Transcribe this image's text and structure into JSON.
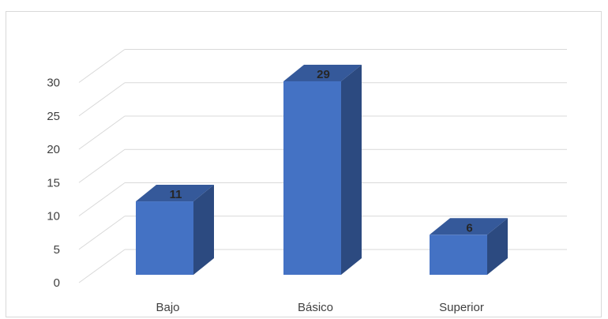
{
  "chart_data": {
    "type": "bar",
    "style": "3d-column",
    "categories": [
      "Bajo",
      "Básico",
      "Superior"
    ],
    "values": [
      11,
      29,
      6
    ],
    "data_labels": [
      "11",
      "29",
      "6"
    ],
    "title": "",
    "xlabel": "",
    "ylabel": "",
    "ylim": [
      0,
      30
    ],
    "yticks": [
      0,
      5,
      10,
      15,
      20,
      25,
      30
    ],
    "ytick_labels": [
      "0",
      "5",
      "10",
      "15",
      "20",
      "25",
      "30"
    ],
    "grid": true,
    "legend": "none",
    "colors": {
      "bar_front": "#4472C4",
      "bar_side": "#2C4A80",
      "bar_top": "#35599A",
      "gridline": "#d9d9d9",
      "text": "#404040"
    }
  }
}
